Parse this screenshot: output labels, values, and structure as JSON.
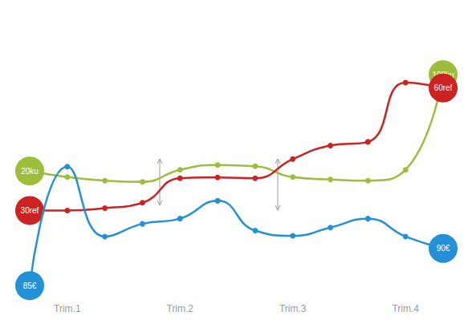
{
  "chart_data": {
    "type": "line",
    "categories": [
      null,
      "Trim.1",
      null,
      null,
      "Trim.2",
      null,
      null,
      "Trim.3",
      null,
      null,
      "Trim.4",
      null
    ],
    "tick_labels": "x",
    "grid": false,
    "marker": "circle",
    "series": [
      {
        "name": "ku",
        "color": "#9dbd3c",
        "values": [
          20,
          15,
          12,
          11,
          21,
          25,
          24,
          15,
          13,
          12,
          21,
          100
        ],
        "value_labels": [
          "20ku",
          null,
          null,
          null,
          null,
          null,
          null,
          null,
          null,
          null,
          null,
          "100ku"
        ],
        "ylim": [
          -85,
          112
        ]
      },
      {
        "name": "ref",
        "color": "#cc2222",
        "values": [
          30,
          30,
          30.6,
          31.9,
          37.9,
          38.1,
          37.9,
          42.6,
          45.9,
          46.8,
          61.3,
          60
        ],
        "value_labels": [
          "30ref",
          null,
          null,
          null,
          null,
          null,
          null,
          null,
          null,
          null,
          null,
          "60ref"
        ],
        "ylim": [
          8.7,
          66.8
        ]
      },
      {
        "name": "€",
        "color": "#2490d6",
        "values": [
          85,
          101,
          91.6,
          93.3,
          94,
          96.4,
          92.4,
          91.7,
          92.8,
          94,
          91.6,
          90
        ],
        "value_labels": [
          "85€",
          null,
          null,
          null,
          null,
          null,
          null,
          null,
          null,
          null,
          null,
          "90€"
        ],
        "ylim": [
          83.4,
          115.3
        ]
      }
    ]
  }
}
